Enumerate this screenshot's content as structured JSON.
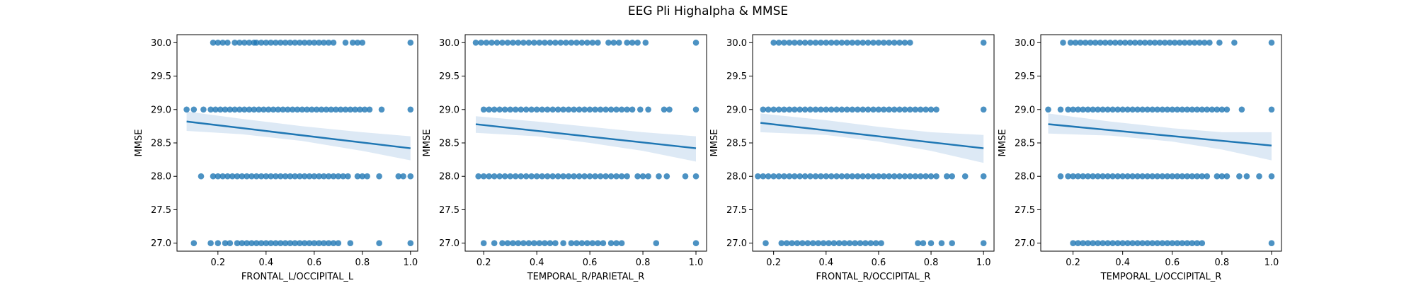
{
  "figure": {
    "title": "EEG Pli Highalpha & MMSE"
  },
  "style": {
    "point_color": "#1f77b4",
    "line_color": "#1f77b4",
    "band_color": "#c6dbef"
  },
  "chart_data": [
    {
      "type": "scatter",
      "xlabel": "FRONTAL_L/OCCIPITAL_L",
      "ylabel": "MMSE",
      "xlim": [
        0.03,
        1.03
      ],
      "ylim": [
        26.88,
        30.12
      ],
      "xticks": [
        0.2,
        0.4,
        0.6,
        0.8,
        1.0
      ],
      "xtick_labels": [
        "0.2",
        "0.4",
        "0.6",
        "0.8",
        "1.0"
      ],
      "yticks": [
        27.0,
        27.5,
        28.0,
        28.5,
        29.0,
        29.5,
        30.0
      ],
      "ytick_labels": [
        "27.0",
        "27.5",
        "28.0",
        "28.5",
        "29.0",
        "29.5",
        "30.0"
      ],
      "points": {
        "30.0": [
          0.18,
          0.2,
          0.22,
          0.24,
          0.27,
          0.29,
          0.31,
          0.33,
          0.35,
          0.36,
          0.38,
          0.4,
          0.42,
          0.44,
          0.46,
          0.48,
          0.5,
          0.52,
          0.54,
          0.56,
          0.58,
          0.6,
          0.62,
          0.64,
          0.66,
          0.68,
          0.73,
          0.76,
          0.78,
          0.8,
          1.0
        ],
        "29.0": [
          0.07,
          0.1,
          0.14,
          0.17,
          0.19,
          0.21,
          0.23,
          0.25,
          0.27,
          0.29,
          0.31,
          0.33,
          0.35,
          0.37,
          0.39,
          0.41,
          0.43,
          0.45,
          0.47,
          0.49,
          0.51,
          0.53,
          0.55,
          0.57,
          0.59,
          0.61,
          0.63,
          0.65,
          0.67,
          0.69,
          0.71,
          0.73,
          0.75,
          0.77,
          0.79,
          0.81,
          0.83,
          0.88,
          1.0
        ],
        "28.0": [
          0.13,
          0.18,
          0.2,
          0.22,
          0.24,
          0.26,
          0.28,
          0.3,
          0.32,
          0.34,
          0.36,
          0.38,
          0.4,
          0.42,
          0.44,
          0.46,
          0.48,
          0.5,
          0.52,
          0.54,
          0.56,
          0.58,
          0.6,
          0.62,
          0.64,
          0.66,
          0.68,
          0.7,
          0.72,
          0.74,
          0.78,
          0.8,
          0.82,
          0.87,
          0.95,
          0.97,
          1.0
        ],
        "27.0": [
          0.1,
          0.17,
          0.2,
          0.23,
          0.25,
          0.28,
          0.3,
          0.32,
          0.34,
          0.36,
          0.38,
          0.4,
          0.42,
          0.44,
          0.46,
          0.48,
          0.5,
          0.52,
          0.54,
          0.56,
          0.58,
          0.6,
          0.62,
          0.64,
          0.66,
          0.68,
          0.7,
          0.75,
          0.87,
          1.0
        ]
      },
      "regression": {
        "x": [
          0.07,
          1.0
        ],
        "y": [
          28.82,
          28.42
        ]
      },
      "ci_band": {
        "x": [
          0.07,
          0.3,
          0.55,
          0.8,
          1.0
        ],
        "lower": [
          28.68,
          28.63,
          28.53,
          28.38,
          28.24
        ],
        "upper": [
          28.97,
          28.86,
          28.75,
          28.66,
          28.6
        ]
      }
    },
    {
      "type": "scatter",
      "xlabel": "TEMPORAL_R/PARIETAL_R",
      "ylabel": "MMSE",
      "xlim": [
        0.13,
        1.04
      ],
      "ylim": [
        26.88,
        30.12
      ],
      "xticks": [
        0.2,
        0.4,
        0.6,
        0.8,
        1.0
      ],
      "xtick_labels": [
        "0.2",
        "0.4",
        "0.6",
        "0.8",
        "1.0"
      ],
      "yticks": [
        27.0,
        27.5,
        28.0,
        28.5,
        29.0,
        29.5,
        30.0
      ],
      "ytick_labels": [
        "27.0",
        "27.5",
        "28.0",
        "28.5",
        "29.0",
        "29.5",
        "30.0"
      ],
      "points": {
        "30.0": [
          0.17,
          0.19,
          0.21,
          0.23,
          0.25,
          0.27,
          0.29,
          0.31,
          0.33,
          0.35,
          0.37,
          0.39,
          0.41,
          0.43,
          0.45,
          0.47,
          0.49,
          0.51,
          0.53,
          0.55,
          0.57,
          0.59,
          0.61,
          0.63,
          0.67,
          0.69,
          0.71,
          0.74,
          0.76,
          0.78,
          0.81,
          1.0
        ],
        "29.0": [
          0.2,
          0.22,
          0.24,
          0.26,
          0.28,
          0.3,
          0.32,
          0.34,
          0.36,
          0.38,
          0.4,
          0.42,
          0.44,
          0.46,
          0.48,
          0.5,
          0.52,
          0.54,
          0.56,
          0.58,
          0.6,
          0.62,
          0.64,
          0.66,
          0.68,
          0.7,
          0.72,
          0.74,
          0.76,
          0.79,
          0.82,
          0.88,
          0.9,
          1.0
        ],
        "28.0": [
          0.18,
          0.2,
          0.22,
          0.24,
          0.26,
          0.28,
          0.3,
          0.32,
          0.34,
          0.36,
          0.38,
          0.4,
          0.42,
          0.44,
          0.46,
          0.48,
          0.5,
          0.52,
          0.54,
          0.56,
          0.58,
          0.6,
          0.62,
          0.64,
          0.66,
          0.68,
          0.7,
          0.72,
          0.74,
          0.78,
          0.8,
          0.82,
          0.86,
          0.89,
          0.96,
          1.0
        ],
        "27.0": [
          0.2,
          0.24,
          0.27,
          0.29,
          0.31,
          0.33,
          0.35,
          0.37,
          0.39,
          0.41,
          0.43,
          0.45,
          0.47,
          0.5,
          0.53,
          0.55,
          0.57,
          0.59,
          0.61,
          0.63,
          0.65,
          0.68,
          0.7,
          0.72,
          0.85,
          1.0
        ]
      },
      "regression": {
        "x": [
          0.17,
          1.0
        ],
        "y": [
          28.78,
          28.42
        ]
      },
      "ci_band": {
        "x": [
          0.17,
          0.4,
          0.6,
          0.8,
          1.0
        ],
        "lower": [
          28.65,
          28.6,
          28.5,
          28.38,
          28.22
        ],
        "upper": [
          28.9,
          28.82,
          28.74,
          28.66,
          28.6
        ]
      }
    },
    {
      "type": "scatter",
      "xlabel": "FRONTAL_R/OCCIPITAL_R",
      "ylabel": "MMSE",
      "xlim": [
        0.12,
        1.04
      ],
      "ylim": [
        26.88,
        30.12
      ],
      "xticks": [
        0.2,
        0.4,
        0.6,
        0.8,
        1.0
      ],
      "xtick_labels": [
        "0.2",
        "0.4",
        "0.6",
        "0.8",
        "1.0"
      ],
      "yticks": [
        27.0,
        27.5,
        28.0,
        28.5,
        29.0,
        29.5,
        30.0
      ],
      "ytick_labels": [
        "27.0",
        "27.5",
        "28.0",
        "28.5",
        "29.0",
        "29.5",
        "30.0"
      ],
      "points": {
        "30.0": [
          0.2,
          0.22,
          0.24,
          0.26,
          0.28,
          0.3,
          0.32,
          0.34,
          0.36,
          0.38,
          0.4,
          0.42,
          0.44,
          0.46,
          0.48,
          0.5,
          0.52,
          0.54,
          0.56,
          0.58,
          0.6,
          0.62,
          0.64,
          0.66,
          0.68,
          0.7,
          0.72,
          1.0
        ],
        "29.0": [
          0.16,
          0.18,
          0.2,
          0.22,
          0.24,
          0.26,
          0.28,
          0.3,
          0.32,
          0.34,
          0.36,
          0.38,
          0.4,
          0.42,
          0.44,
          0.46,
          0.48,
          0.5,
          0.52,
          0.54,
          0.56,
          0.58,
          0.6,
          0.62,
          0.64,
          0.66,
          0.68,
          0.7,
          0.72,
          0.74,
          0.76,
          0.78,
          0.8,
          0.82,
          1.0
        ],
        "28.0": [
          0.14,
          0.16,
          0.18,
          0.2,
          0.22,
          0.24,
          0.26,
          0.28,
          0.3,
          0.32,
          0.34,
          0.36,
          0.38,
          0.4,
          0.42,
          0.44,
          0.46,
          0.48,
          0.5,
          0.52,
          0.54,
          0.56,
          0.58,
          0.6,
          0.62,
          0.64,
          0.66,
          0.68,
          0.7,
          0.72,
          0.74,
          0.76,
          0.78,
          0.8,
          0.82,
          0.86,
          0.88,
          0.93,
          1.0
        ],
        "27.0": [
          0.17,
          0.23,
          0.25,
          0.27,
          0.29,
          0.31,
          0.33,
          0.35,
          0.37,
          0.39,
          0.41,
          0.43,
          0.45,
          0.47,
          0.49,
          0.51,
          0.53,
          0.55,
          0.57,
          0.59,
          0.61,
          0.75,
          0.77,
          0.8,
          0.84,
          0.88,
          1.0
        ]
      },
      "regression": {
        "x": [
          0.15,
          1.0
        ],
        "y": [
          28.8,
          28.42
        ]
      },
      "ci_band": {
        "x": [
          0.15,
          0.4,
          0.6,
          0.8,
          1.0
        ],
        "lower": [
          28.66,
          28.62,
          28.52,
          28.38,
          28.2
        ],
        "upper": [
          28.94,
          28.84,
          28.74,
          28.66,
          28.62
        ]
      }
    },
    {
      "type": "scatter",
      "xlabel": "TEMPORAL_L/OCCIPITAL_R",
      "ylabel": "MMSE",
      "xlim": [
        0.07,
        1.04
      ],
      "ylim": [
        26.88,
        30.12
      ],
      "xticks": [
        0.2,
        0.4,
        0.6,
        0.8,
        1.0
      ],
      "xtick_labels": [
        "0.2",
        "0.4",
        "0.6",
        "0.8",
        "1.0"
      ],
      "yticks": [
        27.0,
        27.5,
        28.0,
        28.5,
        29.0,
        29.5,
        30.0
      ],
      "ytick_labels": [
        "27.0",
        "27.5",
        "28.0",
        "28.5",
        "29.0",
        "29.5",
        "30.0"
      ],
      "points": {
        "30.0": [
          0.16,
          0.19,
          0.21,
          0.23,
          0.25,
          0.27,
          0.29,
          0.31,
          0.33,
          0.35,
          0.37,
          0.39,
          0.41,
          0.43,
          0.45,
          0.47,
          0.49,
          0.51,
          0.53,
          0.55,
          0.57,
          0.59,
          0.61,
          0.63,
          0.65,
          0.67,
          0.69,
          0.71,
          0.73,
          0.75,
          0.79,
          0.85,
          1.0
        ],
        "29.0": [
          0.1,
          0.15,
          0.18,
          0.2,
          0.22,
          0.24,
          0.26,
          0.28,
          0.3,
          0.32,
          0.34,
          0.36,
          0.38,
          0.4,
          0.42,
          0.44,
          0.46,
          0.48,
          0.5,
          0.52,
          0.54,
          0.56,
          0.58,
          0.6,
          0.62,
          0.64,
          0.66,
          0.68,
          0.7,
          0.72,
          0.74,
          0.76,
          0.78,
          0.8,
          0.82,
          0.88,
          1.0
        ],
        "28.0": [
          0.15,
          0.18,
          0.2,
          0.22,
          0.24,
          0.26,
          0.28,
          0.3,
          0.32,
          0.34,
          0.36,
          0.38,
          0.4,
          0.42,
          0.44,
          0.46,
          0.48,
          0.5,
          0.52,
          0.54,
          0.56,
          0.58,
          0.6,
          0.62,
          0.64,
          0.66,
          0.68,
          0.7,
          0.72,
          0.74,
          0.78,
          0.8,
          0.82,
          0.87,
          0.9,
          0.95,
          1.0
        ],
        "27.0": [
          0.2,
          0.22,
          0.24,
          0.26,
          0.28,
          0.3,
          0.32,
          0.34,
          0.36,
          0.38,
          0.4,
          0.42,
          0.44,
          0.46,
          0.48,
          0.5,
          0.52,
          0.54,
          0.56,
          0.58,
          0.6,
          0.62,
          0.64,
          0.66,
          0.68,
          0.7,
          0.72,
          1.0
        ]
      },
      "regression": {
        "x": [
          0.1,
          1.0
        ],
        "y": [
          28.78,
          28.46
        ]
      },
      "ci_band": {
        "x": [
          0.1,
          0.35,
          0.6,
          0.8,
          1.0
        ],
        "lower": [
          28.64,
          28.61,
          28.52,
          28.4,
          28.24
        ],
        "upper": [
          28.94,
          28.82,
          28.72,
          28.66,
          28.66
        ]
      }
    }
  ]
}
